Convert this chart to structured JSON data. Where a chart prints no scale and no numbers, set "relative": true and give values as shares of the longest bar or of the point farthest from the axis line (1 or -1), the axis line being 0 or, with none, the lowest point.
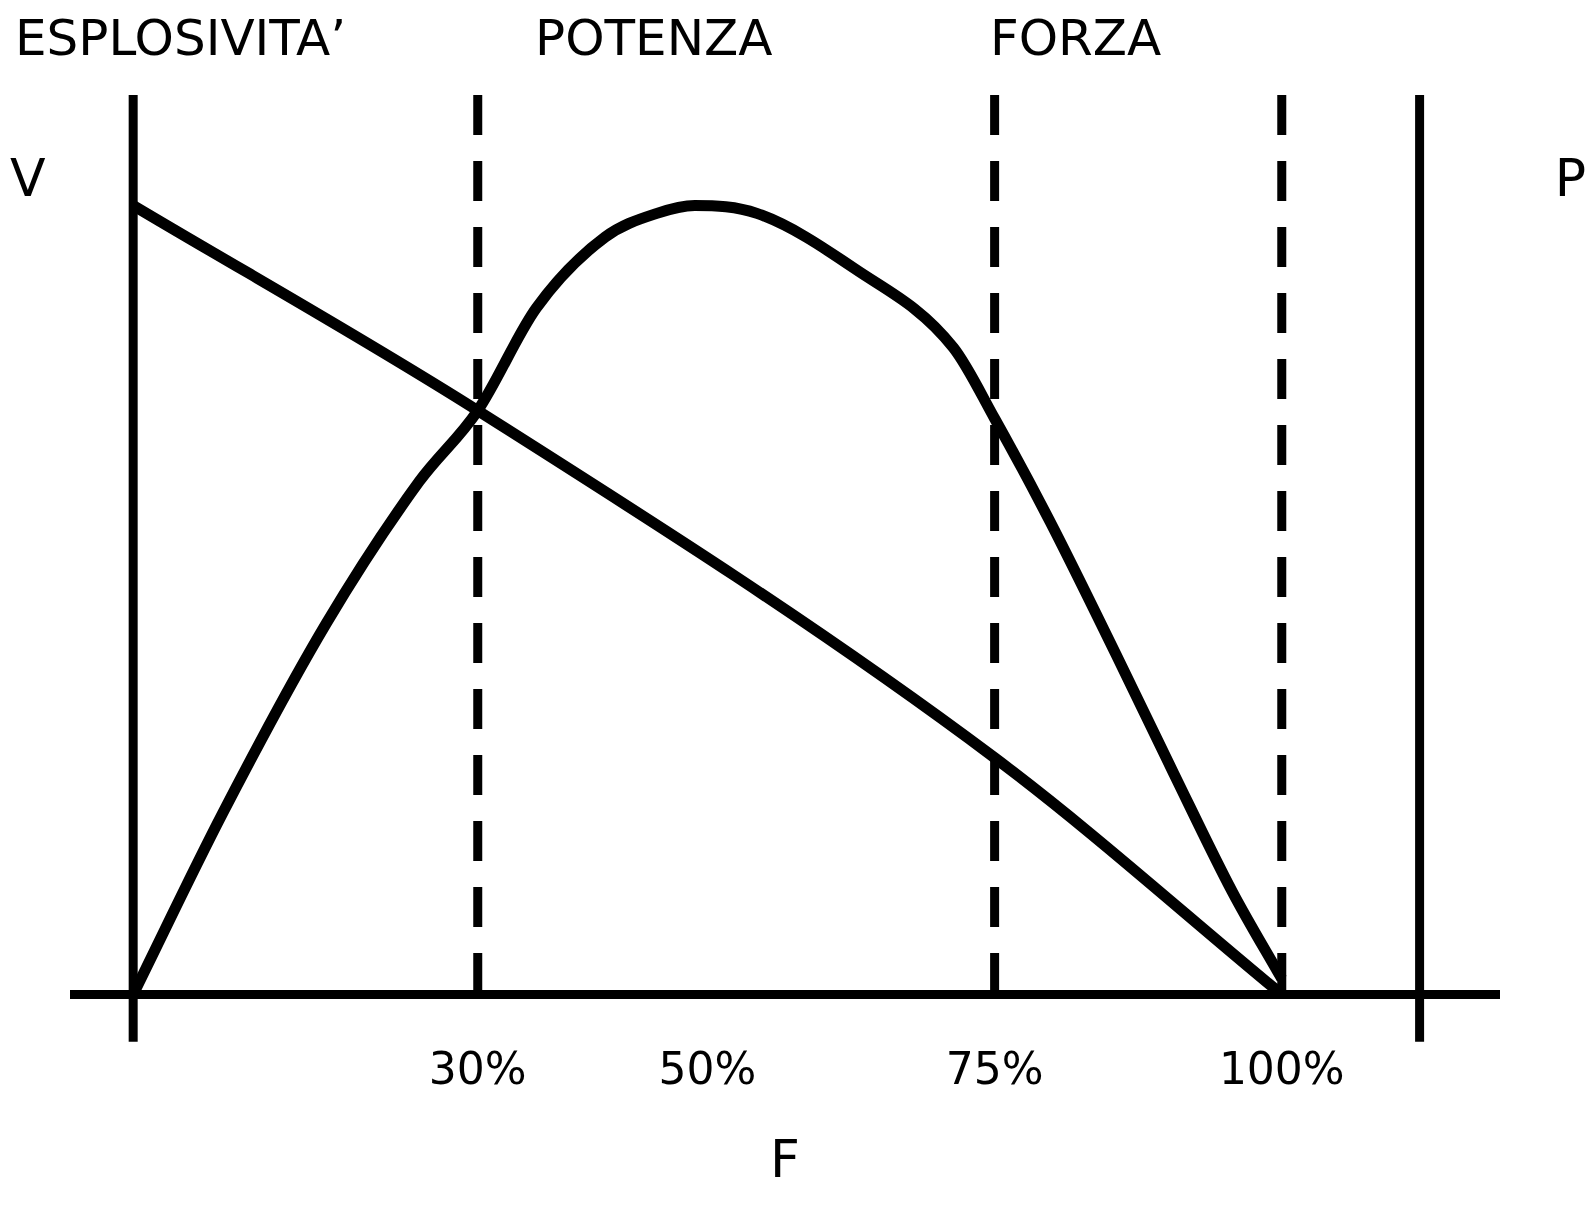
{
  "chart_data": {
    "type": "line",
    "relative": true,
    "xlabel": "F",
    "ylabel": "V",
    "y2label": "P",
    "xlim": [
      -5.5,
      119
    ],
    "xticks": [
      {
        "value": 30,
        "label": "30%"
      },
      {
        "value": 50,
        "label": "50%"
      },
      {
        "value": 75,
        "label": "75%"
      },
      {
        "value": 100,
        "label": "100%"
      }
    ],
    "series": [
      {
        "color": "#000000",
        "x": [
          0,
          30,
          75,
          100
        ],
        "values": [
          1,
          0.74,
          0.3,
          0
        ]
      },
      {
        "color": "#000000",
        "x": [
          0,
          7.8,
          16.8,
          24.9,
          30,
          35.1,
          41.1,
          45.6,
          48.9,
          54.3,
          62.8,
          71.4,
          75,
          79.8,
          85.6,
          90.6,
          95.7,
          99.6,
          100
        ],
        "values": [
          0,
          0.23,
          0.47,
          0.65,
          0.74,
          0.87,
          0.96,
          0.99,
          1,
          0.99,
          0.92,
          0.82,
          0.73,
          0.6,
          0.43,
          0.28,
          0.13,
          0.03,
          0.02
        ]
      }
    ],
    "ref_lines": [
      {
        "axis": "x",
        "value": 0,
        "line_style": "solid",
        "color": "#000000"
      },
      {
        "axis": "x",
        "value": 30,
        "line_style": "dashed",
        "color": "#000000"
      },
      {
        "axis": "x",
        "value": 75,
        "line_style": "dashed",
        "color": "#000000"
      },
      {
        "axis": "x",
        "value": 100,
        "line_style": "dashed",
        "color": "#000000"
      },
      {
        "axis": "x",
        "value": 112,
        "line_style": "solid",
        "color": "#000000"
      }
    ],
    "annotations": [
      "ESPLOSIVITA’",
      "POTENZA",
      "FORZA"
    ],
    "grid": false,
    "legend": false,
    "marker": "none",
    "line_style": "solid"
  }
}
